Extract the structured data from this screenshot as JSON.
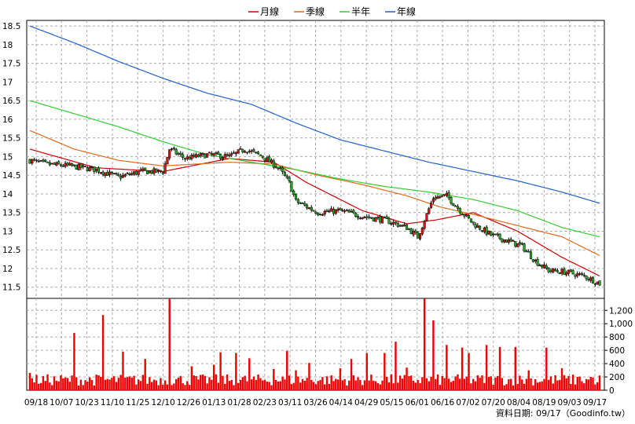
{
  "chart_data": [
    {
      "type": "candlestick",
      "grid": true,
      "legend_position": "top-center",
      "legend": [
        {
          "name": "月線",
          "color": "#cc0000"
        },
        {
          "name": "季線",
          "color": "#e06a1a"
        },
        {
          "name": "半年",
          "color": "#33cc33"
        },
        {
          "name": "年線",
          "color": "#1f5fc8"
        }
      ],
      "yticks": [
        "18.5",
        "18",
        "17.5",
        "17",
        "16.5",
        "16",
        "15.5",
        "15",
        "14.5",
        "14",
        "13.5",
        "13",
        "12.5",
        "12",
        "11.5"
      ],
      "ylim": [
        11.2,
        18.65
      ],
      "xticks": [
        "09/18",
        "10/07",
        "10/23",
        "11/10",
        "11/25",
        "12/10",
        "12/26",
        "01/13",
        "01/28",
        "02/23",
        "03/11",
        "03/26",
        "04/14",
        "04/29",
        "05/15",
        "06/01",
        "06/16",
        "07/02",
        "07/20",
        "08/04",
        "08/19",
        "09/03",
        "09/17"
      ],
      "close_anchors": [
        [
          0,
          14.9
        ],
        [
          7,
          14.8
        ],
        [
          18,
          14.75
        ],
        [
          30,
          14.65
        ],
        [
          40,
          14.45
        ],
        [
          50,
          14.6
        ],
        [
          60,
          14.6
        ],
        [
          63,
          15.2
        ],
        [
          70,
          14.95
        ],
        [
          80,
          15.05
        ],
        [
          90,
          15.0
        ],
        [
          97,
          15.2
        ],
        [
          105,
          15.0
        ],
        [
          112,
          14.7
        ],
        [
          117,
          14.3
        ],
        [
          120,
          13.8
        ],
        [
          130,
          13.5
        ],
        [
          140,
          13.55
        ],
        [
          150,
          13.4
        ],
        [
          160,
          13.3
        ],
        [
          170,
          13.1
        ],
        [
          175,
          12.85
        ],
        [
          178,
          13.3
        ],
        [
          182,
          13.9
        ],
        [
          188,
          13.95
        ],
        [
          195,
          13.5
        ],
        [
          200,
          13.2
        ],
        [
          208,
          12.9
        ],
        [
          215,
          12.75
        ],
        [
          222,
          12.6
        ],
        [
          228,
          12.2
        ],
        [
          234,
          11.95
        ],
        [
          242,
          11.9
        ],
        [
          250,
          11.8
        ],
        [
          257,
          11.6
        ]
      ],
      "moving_averages": [
        {
          "name": "月線",
          "points": [
            [
              0,
              15.2
            ],
            [
              30,
              14.7
            ],
            [
              60,
              14.6
            ],
            [
              90,
              14.95
            ],
            [
              110,
              14.85
            ],
            [
              125,
              14.3
            ],
            [
              150,
              13.55
            ],
            [
              170,
              13.2
            ],
            [
              183,
              13.3
            ],
            [
              200,
              13.5
            ],
            [
              220,
              13.0
            ],
            [
              240,
              12.3
            ],
            [
              257,
              11.8
            ]
          ]
        },
        {
          "name": "季線",
          "points": [
            [
              0,
              15.7
            ],
            [
              20,
              15.2
            ],
            [
              40,
              14.9
            ],
            [
              60,
              14.75
            ],
            [
              90,
              14.85
            ],
            [
              110,
              14.8
            ],
            [
              130,
              14.5
            ],
            [
              150,
              14.25
            ],
            [
              170,
              13.95
            ],
            [
              185,
              13.65
            ],
            [
              200,
              13.45
            ],
            [
              220,
              13.15
            ],
            [
              240,
              12.85
            ],
            [
              257,
              12.35
            ]
          ]
        },
        {
          "name": "半年",
          "points": [
            [
              0,
              16.5
            ],
            [
              20,
              16.15
            ],
            [
              40,
              15.8
            ],
            [
              60,
              15.4
            ],
            [
              80,
              15.05
            ],
            [
              100,
              14.85
            ],
            [
              120,
              14.65
            ],
            [
              140,
              14.4
            ],
            [
              160,
              14.2
            ],
            [
              180,
              14.05
            ],
            [
              200,
              13.85
            ],
            [
              220,
              13.55
            ],
            [
              240,
              13.1
            ],
            [
              257,
              12.85
            ]
          ]
        },
        {
          "name": "年線",
          "points": [
            [
              0,
              18.5
            ],
            [
              20,
              18.05
            ],
            [
              40,
              17.55
            ],
            [
              60,
              17.1
            ],
            [
              80,
              16.7
            ],
            [
              100,
              16.4
            ],
            [
              120,
              15.9
            ],
            [
              140,
              15.45
            ],
            [
              160,
              15.15
            ],
            [
              180,
              14.85
            ],
            [
              200,
              14.6
            ],
            [
              220,
              14.35
            ],
            [
              240,
              14.05
            ],
            [
              257,
              13.75
            ]
          ]
        }
      ],
      "volume": {
        "yticks": [
          "1,200",
          "1,000",
          "800",
          "600",
          "400",
          "200",
          "0"
        ],
        "ylim": [
          0,
          1380
        ],
        "base": 70,
        "spikes": [
          [
            0,
            260
          ],
          [
            20,
            860
          ],
          [
            33,
            1130
          ],
          [
            42,
            580
          ],
          [
            52,
            470
          ],
          [
            63,
            1370
          ],
          [
            73,
            360
          ],
          [
            83,
            380
          ],
          [
            86,
            570
          ],
          [
            93,
            560
          ],
          [
            99,
            480
          ],
          [
            110,
            320
          ],
          [
            116,
            590
          ],
          [
            120,
            300
          ],
          [
            126,
            410
          ],
          [
            140,
            330
          ],
          [
            145,
            470
          ],
          [
            152,
            560
          ],
          [
            160,
            560
          ],
          [
            165,
            730
          ],
          [
            170,
            340
          ],
          [
            178,
            1380
          ],
          [
            182,
            1050
          ],
          [
            188,
            680
          ],
          [
            195,
            640
          ],
          [
            198,
            560
          ],
          [
            206,
            680
          ],
          [
            212,
            650
          ],
          [
            219,
            650
          ],
          [
            225,
            300
          ],
          [
            233,
            640
          ],
          [
            240,
            330
          ],
          [
            247,
            200
          ],
          [
            253,
            200
          ],
          [
            256,
            120
          ]
        ]
      },
      "source_label": "資料日期: 09/17（Goodinfo.tw）"
    }
  ]
}
